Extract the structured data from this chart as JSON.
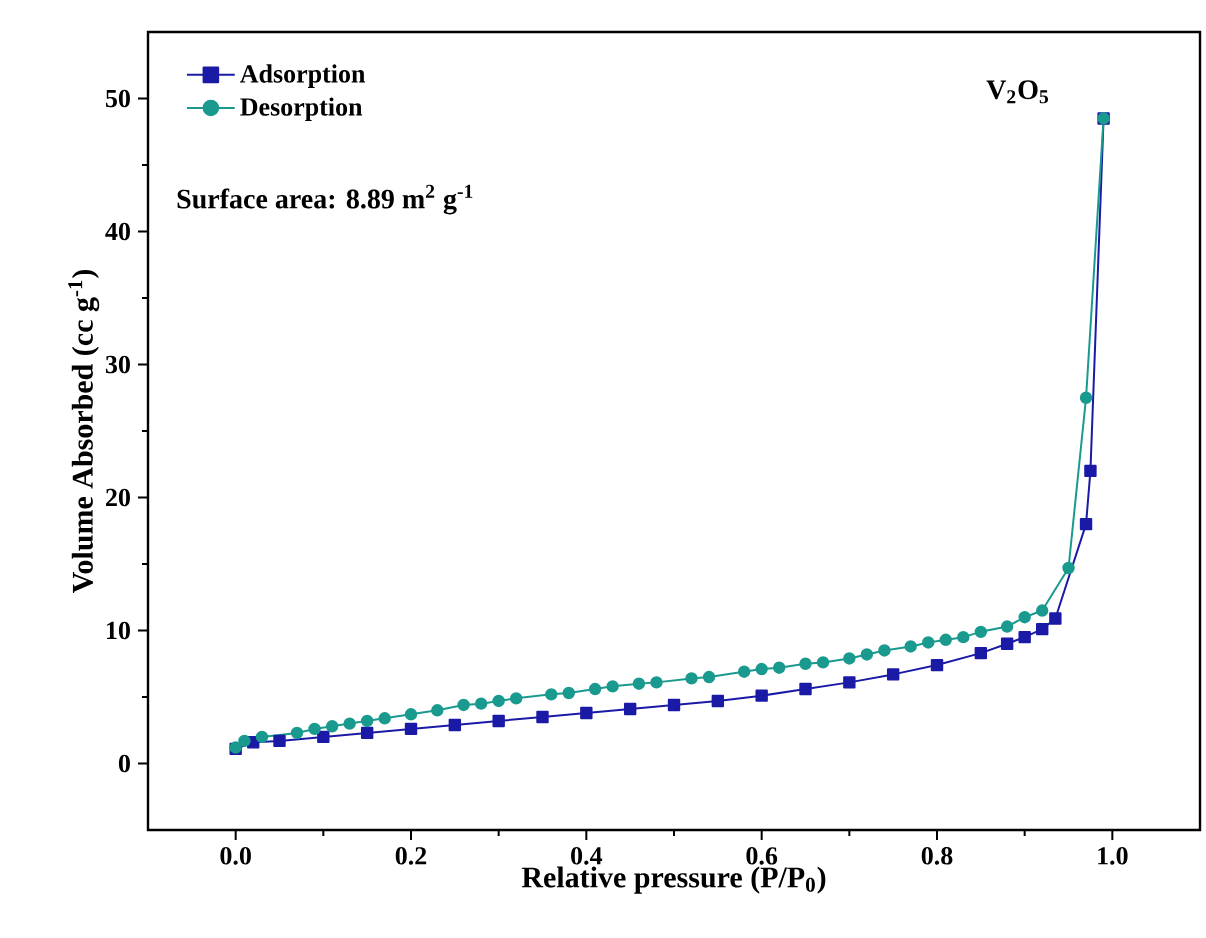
{
  "chart_data": {
    "type": "line",
    "xlabel": "Relative pressure (P/P$_{0}$)",
    "ylabel": "Volume Absorbed (cc g$^{-1}$)",
    "annotations": [
      "V$_{2}$O$_{5}$",
      "Surface area:  8.89 m$^{2}$ g$^{-1}$"
    ],
    "xlim": [
      -0.1,
      1.1
    ],
    "xticks": [
      {
        "value": 0,
        "label": "0.0"
      },
      0.2,
      0.4,
      0.6,
      0.8,
      {
        "value": 1,
        "label": "1.0"
      }
    ],
    "ylim": [
      -5,
      55
    ],
    "yticks": [
      0,
      10,
      20,
      30,
      40,
      50
    ],
    "grid": false,
    "legend": "top left",
    "series": [
      {
        "name": "Adsorption",
        "color": "#1a1aa6",
        "marker": "square",
        "x": [
          0,
          0.02,
          0.05,
          0.1,
          0.15,
          0.2,
          0.25,
          0.3,
          0.35,
          0.4,
          0.45,
          0.5,
          0.55,
          0.6,
          0.65,
          0.7,
          0.75,
          0.8,
          0.85,
          0.88,
          0.9,
          0.92,
          0.935,
          0.97,
          0.975,
          0.99
        ],
        "values": [
          1.1,
          1.6,
          1.7,
          2.0,
          2.3,
          2.6,
          2.9,
          3.2,
          3.5,
          3.8,
          4.1,
          4.4,
          4.7,
          5.1,
          5.6,
          6.1,
          6.7,
          7.4,
          8.3,
          9.0,
          9.5,
          10.1,
          10.9,
          18,
          22,
          48.5
        ]
      },
      {
        "name": "Desorption",
        "color": "#1a9a8f",
        "marker": "circle",
        "x": [
          0,
          0.01,
          0.03,
          0.07,
          0.09,
          0.11,
          0.13,
          0.15,
          0.17,
          0.2,
          0.23,
          0.26,
          0.28,
          0.3,
          0.32,
          0.36,
          0.38,
          0.41,
          0.43,
          0.46,
          0.48,
          0.52,
          0.54,
          0.58,
          0.6,
          0.62,
          0.65,
          0.67,
          0.7,
          0.72,
          0.74,
          0.77,
          0.79,
          0.81,
          0.83,
          0.85,
          0.88,
          0.9,
          0.92,
          0.95,
          0.97,
          0.99
        ],
        "values": [
          1.2,
          1.7,
          2.0,
          2.3,
          2.6,
          2.8,
          3.0,
          3.2,
          3.4,
          3.7,
          4.0,
          4.4,
          4.5,
          4.7,
          4.9,
          5.2,
          5.3,
          5.6,
          5.8,
          6.0,
          6.1,
          6.4,
          6.5,
          6.9,
          7.1,
          7.2,
          7.5,
          7.6,
          7.9,
          8.2,
          8.5,
          8.8,
          9.1,
          9.3,
          9.5,
          9.9,
          10.3,
          11.0,
          11.5,
          14.7,
          27.5,
          48.5
        ]
      }
    ]
  }
}
